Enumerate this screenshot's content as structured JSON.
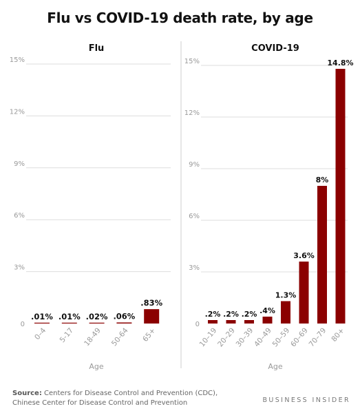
{
  "title": "Flu vs COVID-19 death rate, by age",
  "source_label": "Source:",
  "source_line1": "Centers for Disease Control and Prevention (CDC),",
  "source_line2": "Chinese Center for Disease Control and Prevention",
  "brand": "BUSINESS INSIDER",
  "colors": {
    "bar": "#8b0000",
    "grid": "#dddddd",
    "divider": "#cccccc",
    "tick": "#999999"
  },
  "chart_data": [
    {
      "type": "bar",
      "title": "Flu",
      "xlabel": "Age",
      "ylabel": "",
      "ylim": [
        0,
        15
      ],
      "yticks": [
        0,
        3,
        6,
        9,
        12,
        15
      ],
      "ytick_labels": [
        "0",
        "3%",
        "6%",
        "9%",
        "12%",
        "15%"
      ],
      "categories": [
        "0–4",
        "5-17",
        "18-49",
        "50-64",
        "65+"
      ],
      "values": [
        0.01,
        0.01,
        0.02,
        0.06,
        0.83
      ],
      "data_labels": [
        ".01%",
        ".01%",
        ".02%",
        ".06%",
        ".83%"
      ],
      "grid": true
    },
    {
      "type": "bar",
      "title": "COVID-19",
      "xlabel": "Age",
      "ylabel": "",
      "ylim": [
        0,
        15
      ],
      "yticks": [
        0,
        3,
        6,
        9,
        12,
        15
      ],
      "ytick_labels": [
        "0",
        "3%",
        "6%",
        "9%",
        "12%",
        "15%"
      ],
      "categories": [
        "10–19",
        "20–29",
        "30–39",
        "40–49",
        "50–59",
        "60–69",
        "70–79",
        "80+"
      ],
      "values": [
        0.2,
        0.2,
        0.2,
        0.4,
        1.3,
        3.6,
        8,
        14.8
      ],
      "data_labels": [
        ".2%",
        ".2%",
        ".2%",
        ".4%",
        "1.3%",
        "3.6%",
        "8%",
        "14.8%"
      ],
      "grid": true
    }
  ]
}
